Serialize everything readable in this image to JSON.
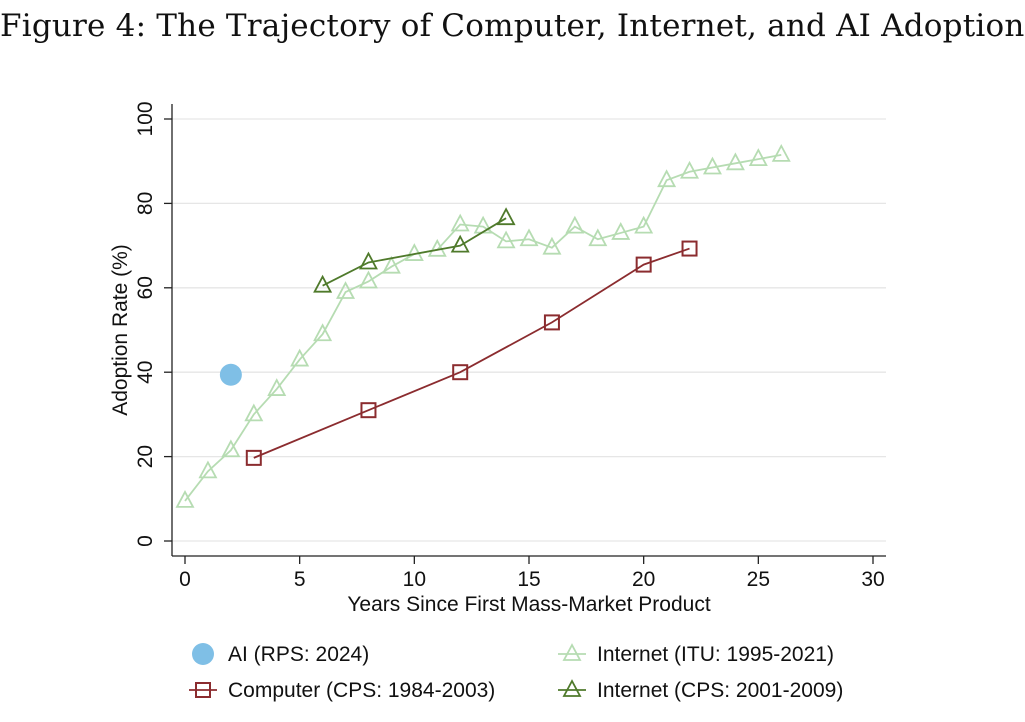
{
  "figure": {
    "title": "Figure 4: The Trajectory of Computer, Internet, and AI Adoption"
  },
  "chart_data": {
    "type": "scatter",
    "title": "Figure 4: The Trajectory of Computer, Internet, and AI Adoption",
    "xlabel": "Years Since First Mass-Market Product",
    "ylabel": "Adoption Rate (%)",
    "xlim": [
      0,
      30
    ],
    "ylim": [
      0,
      100
    ],
    "xticks": [
      0,
      5,
      10,
      15,
      20,
      25,
      30
    ],
    "yticks": [
      0,
      20,
      40,
      60,
      80,
      100
    ],
    "grid": "horizontal",
    "legend_position": "bottom",
    "series": [
      {
        "name": "AI (RPS: 2024)",
        "color": "#7fbfe6",
        "marker": "circle-filled",
        "line": false,
        "x": [
          2
        ],
        "y": [
          39.4
        ]
      },
      {
        "name": "Computer (CPS: 1984-2003)",
        "color": "#8b2c2f",
        "marker": "square-hollow",
        "line": true,
        "x": [
          3,
          8,
          12,
          16,
          20,
          22
        ],
        "y": [
          19.7,
          31,
          40,
          51.8,
          65.5,
          69.3
        ]
      },
      {
        "name": "Internet (ITU: 1995-2021)",
        "color": "#b6dcb2",
        "marker": "triangle-hollow",
        "line": true,
        "x": [
          0,
          1,
          2,
          3,
          4,
          5,
          6,
          7,
          8,
          9,
          10,
          11,
          12,
          13,
          14,
          15,
          16,
          17,
          18,
          19,
          20,
          21,
          22,
          23,
          24,
          25,
          26
        ],
        "y": [
          9.5,
          16.5,
          21.5,
          30,
          36,
          43,
          49,
          59,
          61.5,
          65,
          68,
          69,
          75,
          74.5,
          71,
          71.5,
          69.5,
          74.5,
          71.5,
          73,
          74.5,
          85.5,
          87.5,
          88.5,
          89.5,
          90.5,
          91.5
        ]
      },
      {
        "name": "Internet (CPS: 2001-2009)",
        "color": "#4f7a2b",
        "marker": "triangle-hollow",
        "line": true,
        "x": [
          6,
          8,
          12,
          14
        ],
        "y": [
          60.5,
          66,
          70,
          76.5
        ]
      }
    ]
  }
}
